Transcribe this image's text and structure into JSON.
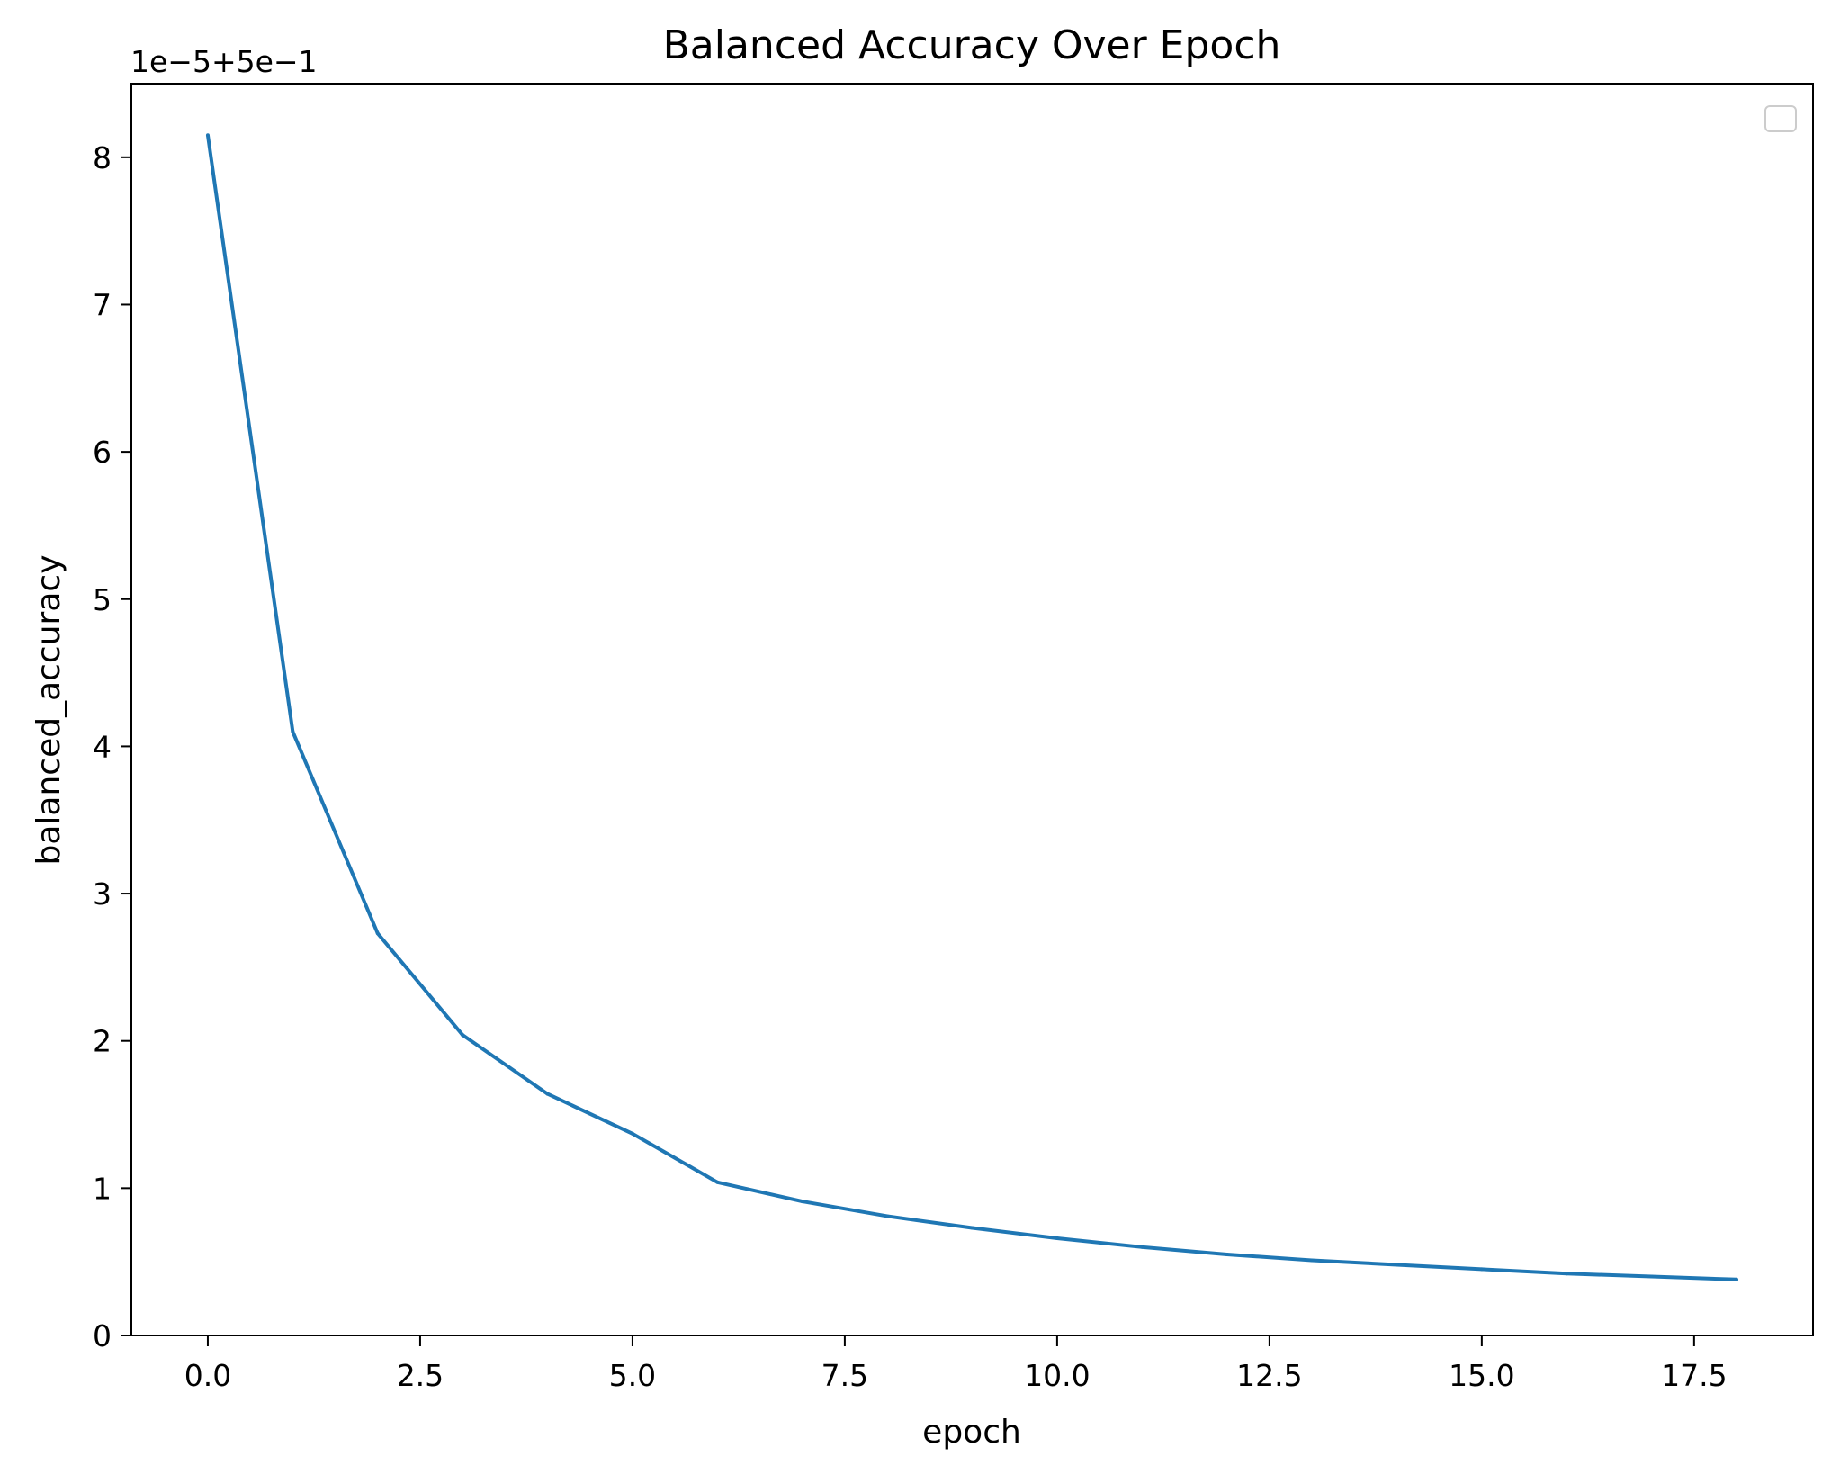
{
  "chart_data": {
    "type": "line",
    "title": "Balanced Accuracy Over Epoch",
    "xlabel": "epoch",
    "ylabel": "balanced_accuracy",
    "y_offset_label": "1e−5+5e−1",
    "xlim": [
      -0.9,
      18.9
    ],
    "ylim": [
      0,
      8.5
    ],
    "x_ticks": [
      0.0,
      2.5,
      5.0,
      7.5,
      10.0,
      12.5,
      15.0,
      17.5
    ],
    "x_tick_labels": [
      "0.0",
      "2.5",
      "5.0",
      "7.5",
      "10.0",
      "12.5",
      "15.0",
      "17.5"
    ],
    "y_ticks": [
      0,
      1,
      2,
      3,
      4,
      5,
      6,
      7,
      8
    ],
    "y_tick_labels": [
      "0",
      "1",
      "2",
      "3",
      "4",
      "5",
      "6",
      "7",
      "8"
    ],
    "grid": false,
    "legend": {
      "placement": "top-right",
      "entries": []
    },
    "series": [
      {
        "color": "#1f77b4",
        "x": [
          0,
          1,
          2,
          3,
          4,
          5,
          6,
          7,
          8,
          9,
          10,
          11,
          12,
          13,
          14,
          15,
          16,
          17,
          18
        ],
        "values": [
          8.15,
          4.1,
          2.73,
          2.04,
          1.64,
          1.37,
          1.04,
          0.91,
          0.81,
          0.73,
          0.66,
          0.6,
          0.55,
          0.51,
          0.48,
          0.45,
          0.42,
          0.4,
          0.38
        ]
      }
    ]
  }
}
